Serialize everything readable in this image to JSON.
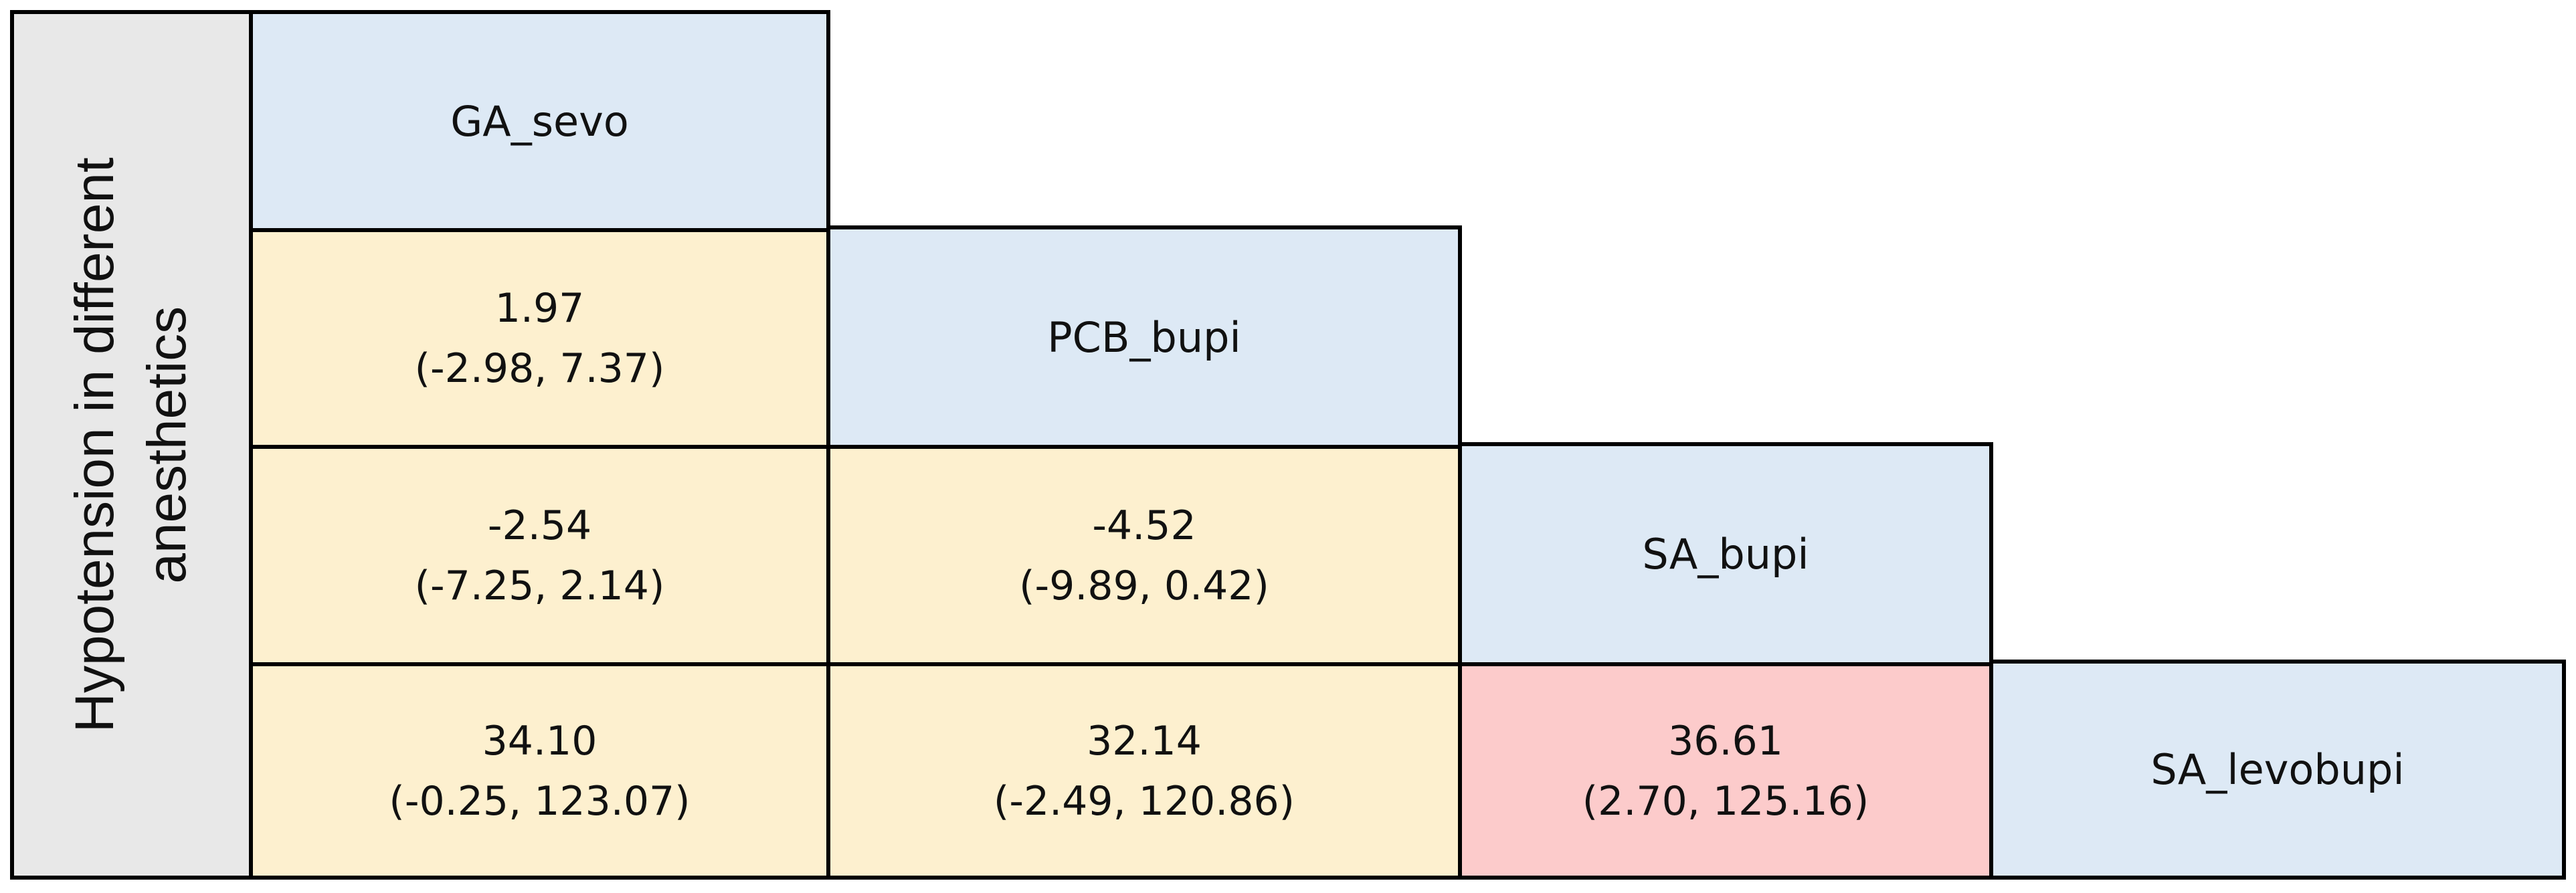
{
  "row_label": {
    "line1": "Hypotension in different",
    "line2": "anesthetics"
  },
  "treatments": [
    "GA_sevo",
    "PCB_bupi",
    "SA_bupi",
    "SA_levobupi"
  ],
  "cells": [
    {
      "est": "1.97",
      "ci": "(-2.98, 7.37)",
      "color": "#fdf0cf"
    },
    {
      "est": "-2.54",
      "ci": "(-7.25, 2.14)",
      "color": "#fdf0cf"
    },
    {
      "est": "-4.52",
      "ci": "(-9.89, 0.42)",
      "color": "#fdf0cf"
    },
    {
      "est": "34.10",
      "ci": "(-0.25, 123.07)",
      "color": "#fdf0cf"
    },
    {
      "est": "32.14",
      "ci": "(-2.49, 120.86)",
      "color": "#fdf0cf"
    },
    {
      "est": "36.61",
      "ci": "(2.70, 125.16)",
      "color": "#fccbcb"
    }
  ],
  "colors": {
    "diagonal": "#dde9f5",
    "non_significant": "#fdf0cf",
    "significant": "#fccbcb",
    "side_panel": "#e8e8e8"
  }
}
